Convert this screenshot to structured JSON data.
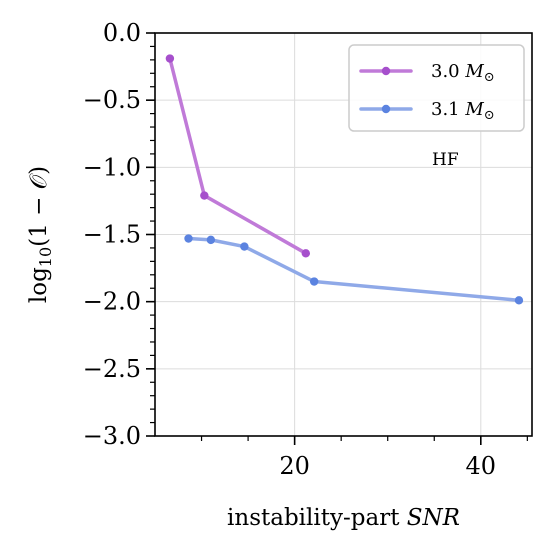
{
  "chart_data": {
    "type": "line",
    "xlabel_prefix": "instability-part ",
    "xlabel_emph": "SNR",
    "ylabel_prefix": "log",
    "ylabel_sub": "10",
    "ylabel_suffix": "(1 − 𝒪)",
    "xlim": [
      5,
      45.5
    ],
    "ylim": [
      -3.0,
      0.0
    ],
    "xticks": [
      20,
      40
    ],
    "yticks": [
      0.0,
      -0.5,
      -1.0,
      -1.5,
      -2.0,
      -2.5,
      -3.0
    ],
    "ytick_labels": [
      "0.0",
      "−0.5",
      "−1.0",
      "−1.5",
      "−2.0",
      "−2.5",
      "−3.0"
    ],
    "grid": true,
    "legend_position": "top-right",
    "annotation": "HF",
    "series": [
      {
        "name": "3.0",
        "name_unit": "M",
        "name_unit_sub": "⊙",
        "color": "#c07ad8",
        "marker_color": "#a64fcc",
        "x": [
          6.6,
          10.3,
          21.2
        ],
        "y": [
          -0.19,
          -1.21,
          -1.64
        ]
      },
      {
        "name": "3.1",
        "name_unit": "M",
        "name_unit_sub": "⊙",
        "color": "#8fa9e8",
        "marker_color": "#5b83e0",
        "x": [
          8.6,
          11.0,
          14.6,
          22.1,
          44.1
        ],
        "y": [
          -1.53,
          -1.54,
          -1.59,
          -1.85,
          -1.99
        ]
      }
    ]
  }
}
